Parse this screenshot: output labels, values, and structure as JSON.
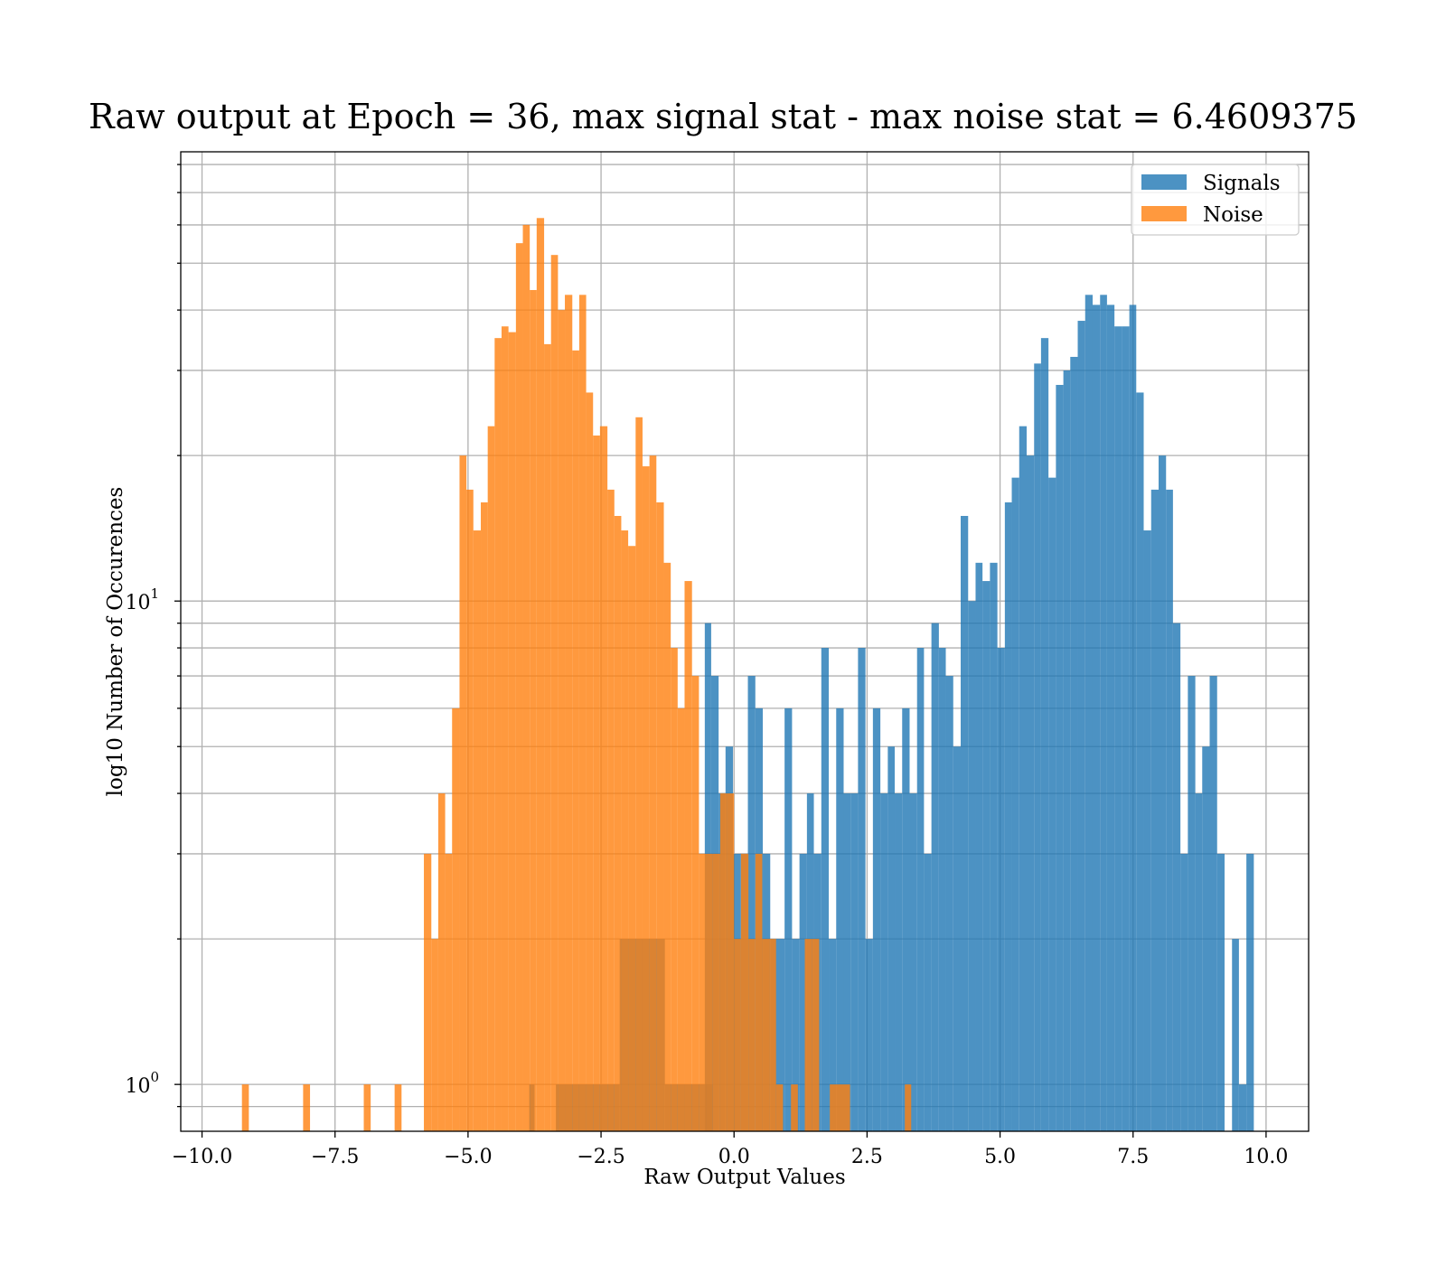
{
  "chart_data": {
    "type": "bar",
    "title": "Raw output at Epoch = 36, max signal stat - max noise stat = 6.4609375",
    "xlabel": "Raw Output Values",
    "ylabel": "log10 Number of Occurences",
    "xlim": [
      -10.4,
      10.8
    ],
    "ylim": [
      0.8,
      85
    ],
    "yscale": "log",
    "grid": true,
    "legend_position": "top-right",
    "x_ticks": [
      {
        "value": -10.0,
        "label": "−10.0"
      },
      {
        "value": -7.5,
        "label": "−7.5"
      },
      {
        "value": -5.0,
        "label": "−5.0"
      },
      {
        "value": -2.5,
        "label": "−2.5"
      },
      {
        "value": 0.0,
        "label": "0.0"
      },
      {
        "value": 2.5,
        "label": "2.5"
      },
      {
        "value": 5.0,
        "label": "5.0"
      },
      {
        "value": 7.5,
        "label": "7.5"
      },
      {
        "value": 10.0,
        "label": "10.0"
      }
    ],
    "y_ticks": [
      {
        "value": 1,
        "base": "10",
        "exp": "0"
      },
      {
        "value": 10,
        "base": "10",
        "exp": "1"
      }
    ],
    "series": [
      {
        "name": "Signals",
        "color": "#1f77b4",
        "opacity": 0.8,
        "bins": [
          [
            -3.85,
            -3.75,
            1
          ],
          [
            -3.35,
            -2.15,
            1
          ],
          [
            -2.15,
            -1.3,
            2
          ],
          [
            -1.3,
            -0.4,
            1
          ],
          [
            -0.55,
            -0.43,
            9
          ],
          [
            -0.43,
            -0.29,
            7
          ],
          [
            -0.29,
            -0.16,
            4
          ],
          [
            -0.16,
            -0.02,
            5
          ],
          [
            -0.02,
            0.12,
            3
          ],
          [
            0.12,
            0.26,
            3
          ],
          [
            0.26,
            0.4,
            7
          ],
          [
            0.4,
            0.54,
            6
          ],
          [
            0.54,
            0.68,
            3
          ],
          [
            0.68,
            0.82,
            2
          ],
          [
            0.82,
            0.95,
            2
          ],
          [
            0.95,
            1.09,
            6
          ],
          [
            1.09,
            1.23,
            2
          ],
          [
            1.23,
            1.37,
            3
          ],
          [
            1.37,
            1.5,
            4
          ],
          [
            1.5,
            1.64,
            3
          ],
          [
            1.64,
            1.78,
            8
          ],
          [
            1.78,
            1.92,
            2
          ],
          [
            1.92,
            2.06,
            6
          ],
          [
            2.06,
            2.2,
            4
          ],
          [
            2.2,
            2.33,
            4
          ],
          [
            2.33,
            2.47,
            8
          ],
          [
            2.47,
            2.61,
            2
          ],
          [
            2.61,
            2.75,
            6
          ],
          [
            2.75,
            2.89,
            4
          ],
          [
            2.89,
            3.02,
            5
          ],
          [
            3.02,
            3.16,
            4
          ],
          [
            3.16,
            3.3,
            6
          ],
          [
            3.3,
            3.44,
            4
          ],
          [
            3.44,
            3.57,
            8
          ],
          [
            3.57,
            3.71,
            3
          ],
          [
            3.71,
            3.85,
            9
          ],
          [
            3.85,
            3.98,
            8
          ],
          [
            3.98,
            4.12,
            7
          ],
          [
            4.12,
            4.26,
            5
          ],
          [
            4.26,
            4.4,
            15
          ],
          [
            4.4,
            4.54,
            10
          ],
          [
            4.54,
            4.67,
            12
          ],
          [
            4.67,
            4.81,
            11
          ],
          [
            4.81,
            4.95,
            12
          ],
          [
            4.95,
            5.09,
            8
          ],
          [
            5.09,
            5.22,
            16
          ],
          [
            5.22,
            5.36,
            18
          ],
          [
            5.36,
            5.5,
            23
          ],
          [
            5.5,
            5.64,
            20
          ],
          [
            5.64,
            5.77,
            31
          ],
          [
            5.77,
            5.91,
            35
          ],
          [
            5.91,
            6.05,
            18
          ],
          [
            6.05,
            6.19,
            28
          ],
          [
            6.19,
            6.32,
            30
          ],
          [
            6.32,
            6.46,
            32
          ],
          [
            6.46,
            6.6,
            38
          ],
          [
            6.6,
            6.74,
            43
          ],
          [
            6.74,
            6.88,
            41
          ],
          [
            6.88,
            7.01,
            43
          ],
          [
            7.01,
            7.15,
            41
          ],
          [
            7.15,
            7.29,
            37
          ],
          [
            7.29,
            7.43,
            37
          ],
          [
            7.43,
            7.56,
            41
          ],
          [
            7.56,
            7.7,
            27
          ],
          [
            7.7,
            7.84,
            14
          ],
          [
            7.84,
            7.98,
            17
          ],
          [
            7.98,
            8.12,
            20
          ],
          [
            8.12,
            8.25,
            17
          ],
          [
            8.25,
            8.39,
            9
          ],
          [
            8.39,
            8.53,
            3
          ],
          [
            8.53,
            8.67,
            7
          ],
          [
            8.67,
            8.8,
            4
          ],
          [
            8.8,
            8.94,
            5
          ],
          [
            8.94,
            9.08,
            7
          ],
          [
            9.08,
            9.22,
            3
          ],
          [
            9.36,
            9.49,
            2
          ],
          [
            9.49,
            9.63,
            1
          ],
          [
            9.63,
            9.77,
            3
          ]
        ]
      },
      {
        "name": "Noise",
        "color": "#ff7f0e",
        "opacity": 0.8,
        "bins": [
          [
            -9.25,
            -9.12,
            1
          ],
          [
            -8.1,
            -7.97,
            1
          ],
          [
            -6.96,
            -6.83,
            1
          ],
          [
            -6.38,
            -6.25,
            1
          ],
          [
            -5.83,
            -5.69,
            3
          ],
          [
            -5.69,
            -5.56,
            2
          ],
          [
            -5.56,
            -5.43,
            4
          ],
          [
            -5.43,
            -5.3,
            3
          ],
          [
            -5.3,
            -5.16,
            6
          ],
          [
            -5.16,
            -5.03,
            20
          ],
          [
            -5.03,
            -4.9,
            17
          ],
          [
            -4.9,
            -4.76,
            14
          ],
          [
            -4.76,
            -4.63,
            16
          ],
          [
            -4.63,
            -4.5,
            23
          ],
          [
            -4.5,
            -4.37,
            35
          ],
          [
            -4.37,
            -4.24,
            37
          ],
          [
            -4.24,
            -4.1,
            36
          ],
          [
            -4.1,
            -3.97,
            55
          ],
          [
            -3.97,
            -3.84,
            60
          ],
          [
            -3.84,
            -3.71,
            44
          ],
          [
            -3.71,
            -3.57,
            62
          ],
          [
            -3.57,
            -3.44,
            34
          ],
          [
            -3.44,
            -3.31,
            52
          ],
          [
            -3.31,
            -3.18,
            40
          ],
          [
            -3.18,
            -3.04,
            43
          ],
          [
            -3.04,
            -2.91,
            33
          ],
          [
            -2.91,
            -2.78,
            43
          ],
          [
            -2.78,
            -2.65,
            27
          ],
          [
            -2.65,
            -2.52,
            22
          ],
          [
            -2.52,
            -2.38,
            23
          ],
          [
            -2.38,
            -2.25,
            17
          ],
          [
            -2.25,
            -2.12,
            15
          ],
          [
            -2.12,
            -1.99,
            14
          ],
          [
            -1.99,
            -1.85,
            13
          ],
          [
            -1.85,
            -1.72,
            24
          ],
          [
            -1.72,
            -1.59,
            19
          ],
          [
            -1.59,
            -1.46,
            20
          ],
          [
            -1.46,
            -1.32,
            16
          ],
          [
            -1.32,
            -1.19,
            12
          ],
          [
            -1.19,
            -1.06,
            8
          ],
          [
            -1.06,
            -0.93,
            6
          ],
          [
            -0.93,
            -0.79,
            11
          ],
          [
            -0.79,
            -0.66,
            7
          ],
          [
            -0.66,
            -0.53,
            3
          ],
          [
            -0.53,
            -0.4,
            3
          ],
          [
            -0.4,
            -0.26,
            3
          ],
          [
            -0.26,
            -0.13,
            4
          ],
          [
            -0.13,
            0.0,
            4
          ],
          [
            0.0,
            0.13,
            2
          ],
          [
            0.13,
            0.27,
            3
          ],
          [
            0.27,
            0.4,
            2
          ],
          [
            0.4,
            0.53,
            3
          ],
          [
            0.53,
            0.66,
            2
          ],
          [
            0.66,
            0.79,
            2
          ],
          [
            0.79,
            0.92,
            1
          ],
          [
            1.07,
            1.2,
            1
          ],
          [
            1.33,
            1.47,
            2
          ],
          [
            1.47,
            1.6,
            2
          ],
          [
            1.8,
            2.18,
            1
          ],
          [
            3.21,
            3.33,
            1
          ]
        ]
      }
    ]
  }
}
